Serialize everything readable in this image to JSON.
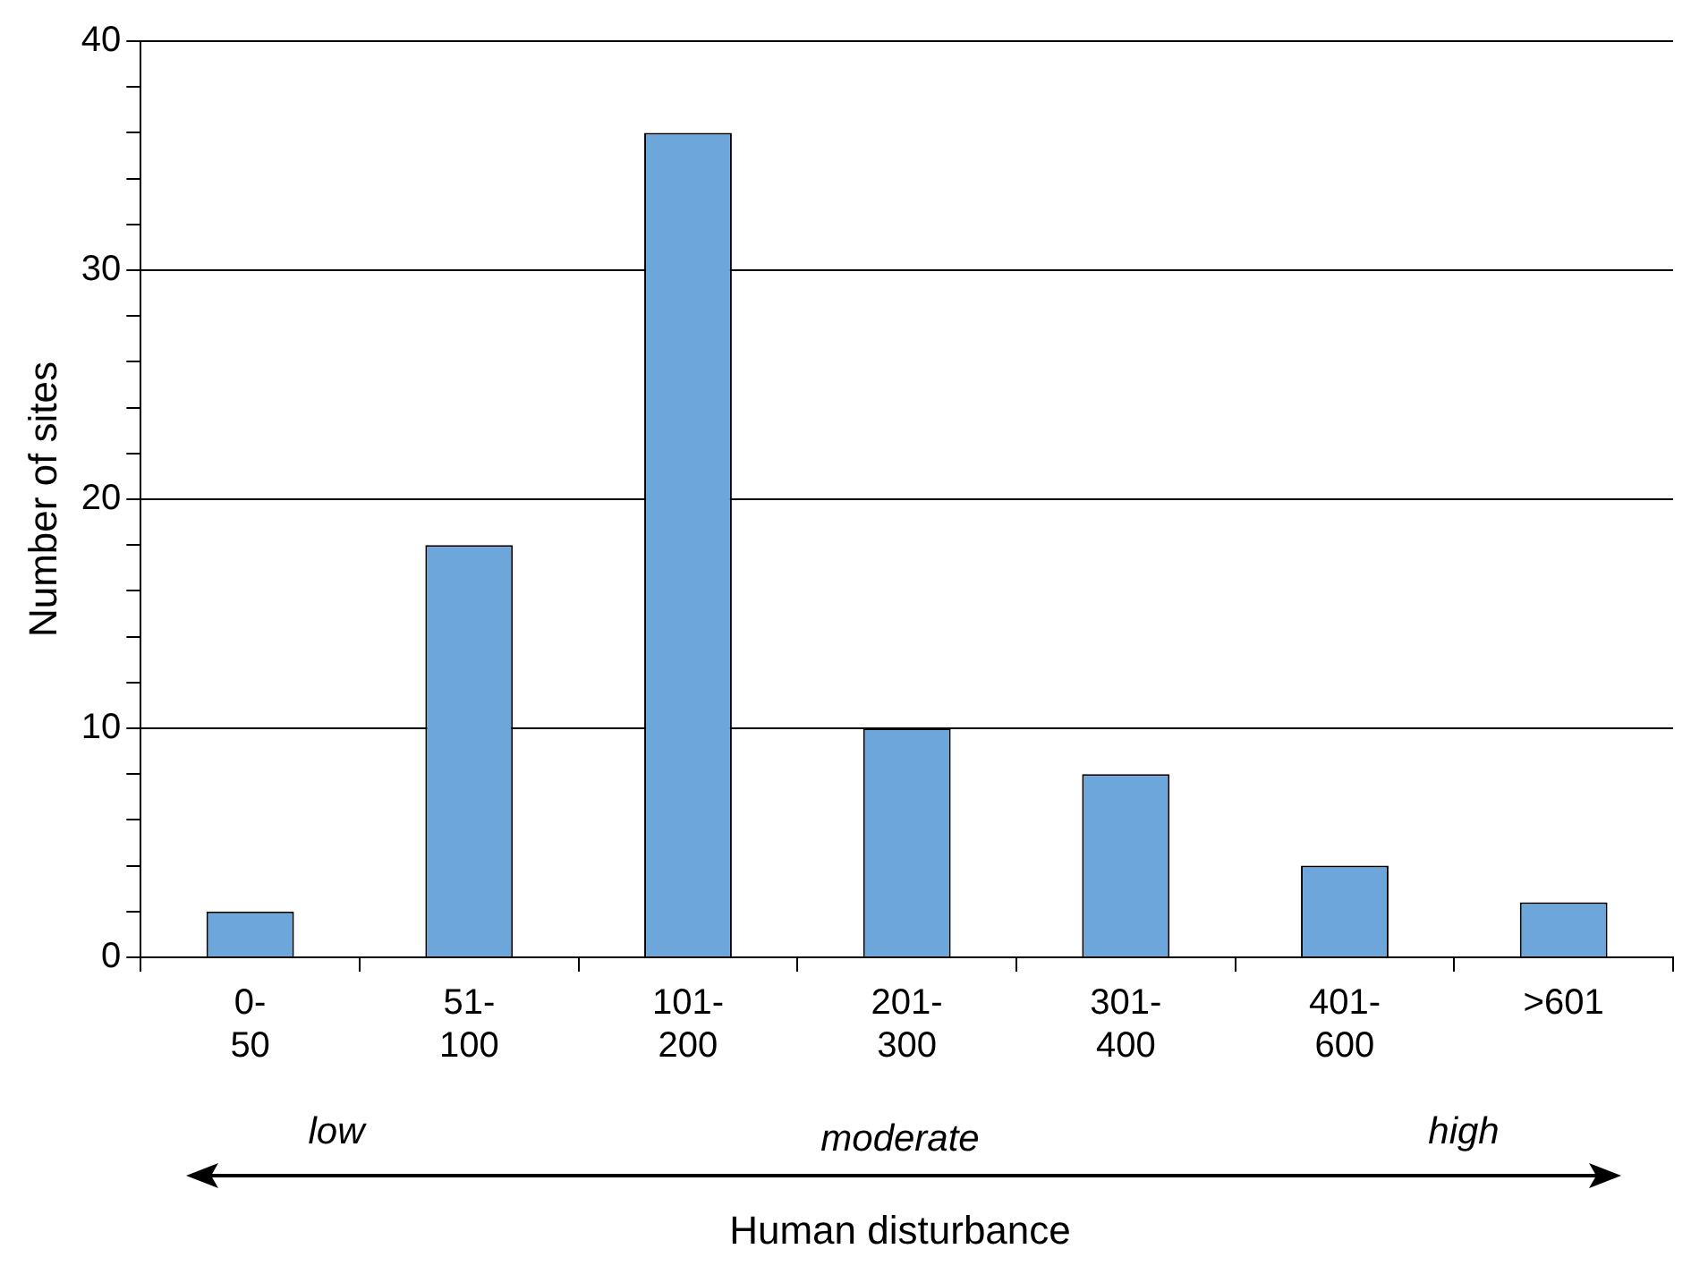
{
  "chart_data": {
    "type": "bar",
    "xlabel": "Human disturbance",
    "ylabel": "Number of sites",
    "categories": [
      "0-50",
      "51-100",
      "101-200",
      "201-300",
      "301-400",
      "401-600",
      ">601"
    ],
    "values": [
      2,
      18,
      36,
      10,
      8,
      4,
      2.4
    ],
    "color": "#6ca6da",
    "ylim": [
      0,
      40
    ],
    "yticks": [
      0,
      {
        "value": 2,
        "label": null
      },
      {
        "value": 4,
        "label": null
      },
      {
        "value": 6,
        "label": null
      },
      {
        "value": 8,
        "label": null
      },
      10,
      {
        "value": 12,
        "label": null
      },
      {
        "value": 14,
        "label": null
      },
      {
        "value": 16,
        "label": null
      },
      {
        "value": 18,
        "label": null
      },
      20,
      {
        "value": 22,
        "label": null
      },
      {
        "value": 24,
        "label": null
      },
      {
        "value": 26,
        "label": null
      },
      {
        "value": 28,
        "label": null
      },
      30,
      {
        "value": 32,
        "label": null
      },
      {
        "value": 34,
        "label": null
      },
      {
        "value": 36,
        "label": null
      },
      {
        "value": 38,
        "label": null
      },
      40
    ],
    "grid": "y",
    "annotations": [
      "low",
      "moderate",
      "high"
    ]
  }
}
